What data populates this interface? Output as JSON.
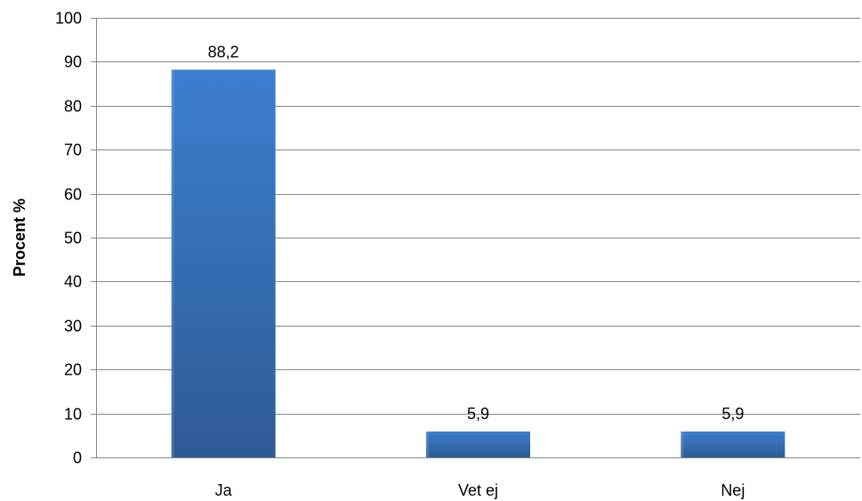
{
  "chart_data": {
    "type": "bar",
    "title": "",
    "xlabel": "",
    "ylabel": "Procent %",
    "categories": [
      "Ja",
      "Vet ej",
      "Nej"
    ],
    "values": [
      88.2,
      5.9,
      5.9
    ],
    "value_labels": [
      "88,2",
      "5,9",
      "5,9"
    ],
    "ylim": [
      0,
      100
    ],
    "yticks": [
      0,
      10,
      20,
      30,
      40,
      50,
      60,
      70,
      80,
      90,
      100
    ],
    "grid": true,
    "legend": "none",
    "colors": {
      "bar_top": "#3C7FCF",
      "bar_bottom": "#2E5B96",
      "grid": "#868686",
      "axis": "#868686"
    }
  }
}
